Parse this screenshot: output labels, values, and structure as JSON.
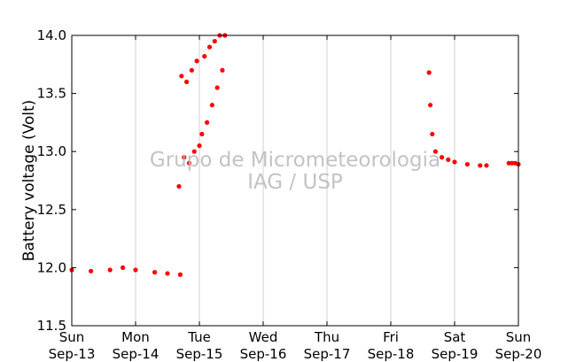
{
  "chart_data": {
    "type": "scatter",
    "title": "",
    "xlabel": "",
    "ylabel": "Battery voltage (Volt)",
    "ylim": [
      11.5,
      14.0
    ],
    "xlim": [
      0,
      7
    ],
    "yticks": [
      11.5,
      12.0,
      12.5,
      13.0,
      13.5,
      14.0
    ],
    "ytick_labels": [
      "11.5",
      "12.0",
      "12.5",
      "13.0",
      "13.5",
      "14.0"
    ],
    "xticks": [
      0,
      1,
      2,
      3,
      4,
      5,
      6,
      7
    ],
    "xtick_labels": [
      [
        "Sun",
        "Sep-13"
      ],
      [
        "Mon",
        "Sep-14"
      ],
      [
        "Tue",
        "Sep-15"
      ],
      [
        "Wed",
        "Sep-16"
      ],
      [
        "Thu",
        "Sep-17"
      ],
      [
        "Fri",
        "Sep-18"
      ],
      [
        "Sat",
        "Sep-19"
      ],
      [
        "Sun",
        "Sep-20"
      ]
    ],
    "x_unit": "days since Sun Sep-13 00:00",
    "grid": "vertical",
    "marker_color": "#ff0000",
    "segments": [
      {
        "x": [
          0.0,
          0.3,
          0.6,
          0.8,
          1.0,
          1.3,
          1.5,
          1.7
        ],
        "y": [
          11.98,
          11.97,
          11.98,
          12.0,
          11.98,
          11.96,
          11.95,
          11.94
        ]
      },
      {
        "x": [
          1.68,
          1.72,
          1.76,
          1.8,
          1.84,
          1.88,
          1.92,
          1.96,
          2.0,
          2.04,
          2.08,
          2.12,
          2.16,
          2.2,
          2.24,
          2.28,
          2.32,
          2.36,
          2.4
        ],
        "y": [
          12.7,
          13.65,
          12.95,
          13.6,
          12.9,
          13.7,
          13.0,
          13.78,
          13.05,
          13.15,
          13.82,
          13.25,
          13.9,
          13.4,
          13.95,
          13.55,
          14.0,
          13.7,
          14.0
        ]
      },
      {
        "x": [
          5.6,
          5.62,
          5.65,
          5.7,
          5.8,
          5.9,
          6.0,
          6.2,
          6.4,
          6.5
        ],
        "y": [
          13.68,
          13.4,
          13.15,
          13.0,
          12.95,
          12.93,
          12.91,
          12.89,
          12.88,
          12.88
        ]
      },
      {
        "x": [
          6.85,
          6.9,
          6.95,
          7.0
        ],
        "y": [
          12.9,
          12.9,
          12.9,
          12.89
        ]
      }
    ]
  },
  "watermark": {
    "line1": "Grupo de Micrometeorologia",
    "line2": "IAG / USP"
  }
}
